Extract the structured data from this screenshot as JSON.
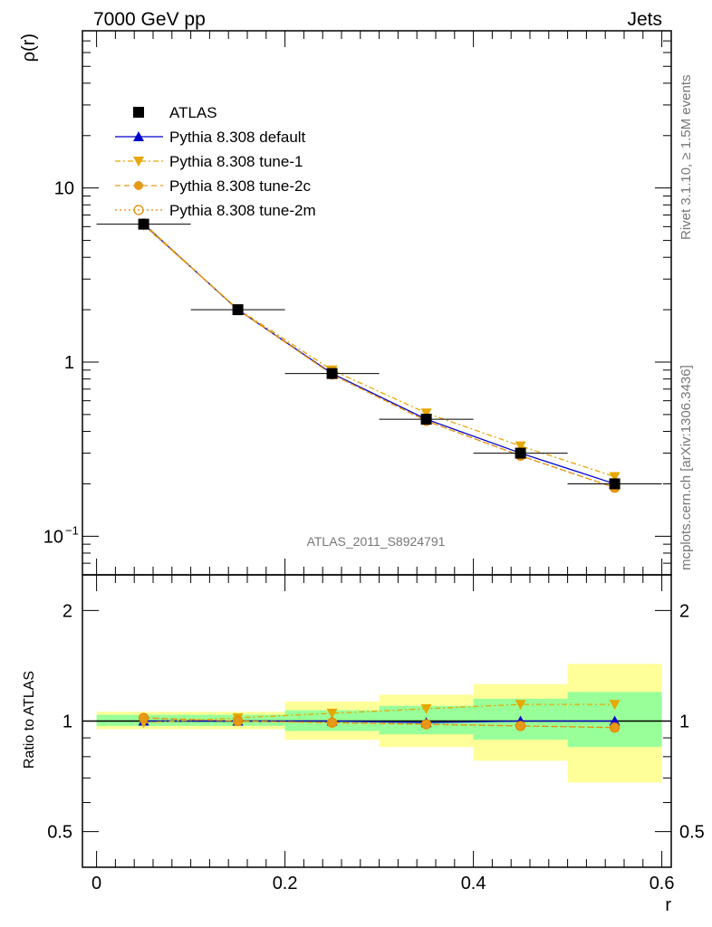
{
  "header": {
    "left_title": "7000 GeV pp",
    "right_title": "Jets"
  },
  "side_labels": {
    "rivet": "Rivet 3.1.10, ≥ 1.5M events",
    "source": "mcplots.cern.ch [arXiv:1306.3436]"
  },
  "watermark": "ATLAS_2011_S8924791",
  "colors": {
    "atlas": "#000000",
    "default": "#0000cc",
    "tune1": "#e6a800",
    "tune2c": "#e69a1a",
    "tune2m": "#e68a00",
    "band_outer": "#ffff99",
    "band_inner": "#99ff99"
  },
  "chart_data": [
    {
      "type": "line",
      "name": "main",
      "ylabel": "ρ(r)",
      "yscale": "log",
      "ylim": [
        0.06,
        80
      ],
      "xlim": [
        -0.015,
        0.61
      ],
      "yticks": [
        {
          "value": 10,
          "label": "10"
        },
        {
          "value": 1,
          "label": "1"
        },
        {
          "value": 0.1,
          "label": "10",
          "sup": "−1"
        }
      ],
      "legend": [
        "ATLAS",
        "Pythia 8.308 default",
        "Pythia 8.308 tune-1",
        "Pythia 8.308 tune-2c",
        "Pythia 8.308 tune-2m"
      ],
      "x": [
        0.05,
        0.15,
        0.25,
        0.35,
        0.45,
        0.55
      ],
      "series": [
        {
          "name": "ATLAS",
          "values": [
            6.2,
            2.0,
            0.86,
            0.47,
            0.3,
            0.2
          ]
        },
        {
          "name": "Pythia 8.308 default",
          "values": [
            6.2,
            2.0,
            0.86,
            0.47,
            0.3,
            0.2
          ]
        },
        {
          "name": "Pythia 8.308 tune-1",
          "values": [
            6.1,
            2.02,
            0.9,
            0.51,
            0.33,
            0.22
          ]
        },
        {
          "name": "Pythia 8.308 tune-2c",
          "values": [
            6.25,
            2.0,
            0.85,
            0.46,
            0.29,
            0.19
          ]
        },
        {
          "name": "Pythia 8.308 tune-2m",
          "values": [
            6.25,
            2.0,
            0.85,
            0.46,
            0.29,
            0.19
          ]
        }
      ]
    },
    {
      "type": "line",
      "name": "ratio",
      "ylabel": "Ratio to ATLAS",
      "xlabel": "r",
      "yscale": "log",
      "ylim": [
        0.4,
        2.5
      ],
      "xlim": [
        -0.015,
        0.61
      ],
      "xticks": [
        0,
        0.2,
        0.4,
        0.6
      ],
      "xtick_labels": [
        "0",
        "0.2",
        "0.4",
        "0.6"
      ],
      "yticks": [
        0.5,
        1,
        2
      ],
      "ytick_labels": [
        "0.5",
        "1",
        "2"
      ],
      "bins": [
        [
          0.0,
          0.1
        ],
        [
          0.1,
          0.2
        ],
        [
          0.2,
          0.3
        ],
        [
          0.3,
          0.4
        ],
        [
          0.4,
          0.5
        ],
        [
          0.5,
          0.6
        ]
      ],
      "band_outer": [
        [
          0.95,
          1.06
        ],
        [
          0.95,
          1.06
        ],
        [
          0.89,
          1.13
        ],
        [
          0.85,
          1.18
        ],
        [
          0.78,
          1.26
        ],
        [
          0.68,
          1.43
        ]
      ],
      "band_inner": [
        [
          0.97,
          1.04
        ],
        [
          0.97,
          1.04
        ],
        [
          0.94,
          1.07
        ],
        [
          0.92,
          1.1
        ],
        [
          0.89,
          1.15
        ],
        [
          0.85,
          1.2
        ]
      ],
      "x": [
        0.05,
        0.15,
        0.25,
        0.35,
        0.45,
        0.55
      ],
      "series": [
        {
          "name": "Pythia 8.308 default",
          "values": [
            1.0,
            1.0,
            1.0,
            0.99,
            1.0,
            1.0
          ]
        },
        {
          "name": "Pythia 8.308 tune-1",
          "values": [
            0.99,
            1.02,
            1.05,
            1.08,
            1.11,
            1.11
          ]
        },
        {
          "name": "Pythia 8.308 tune-2c",
          "values": [
            1.02,
            1.0,
            0.99,
            0.98,
            0.97,
            0.96
          ]
        },
        {
          "name": "Pythia 8.308 tune-2m",
          "values": [
            1.02,
            1.0,
            0.99,
            0.98,
            0.97,
            0.96
          ]
        }
      ]
    }
  ]
}
